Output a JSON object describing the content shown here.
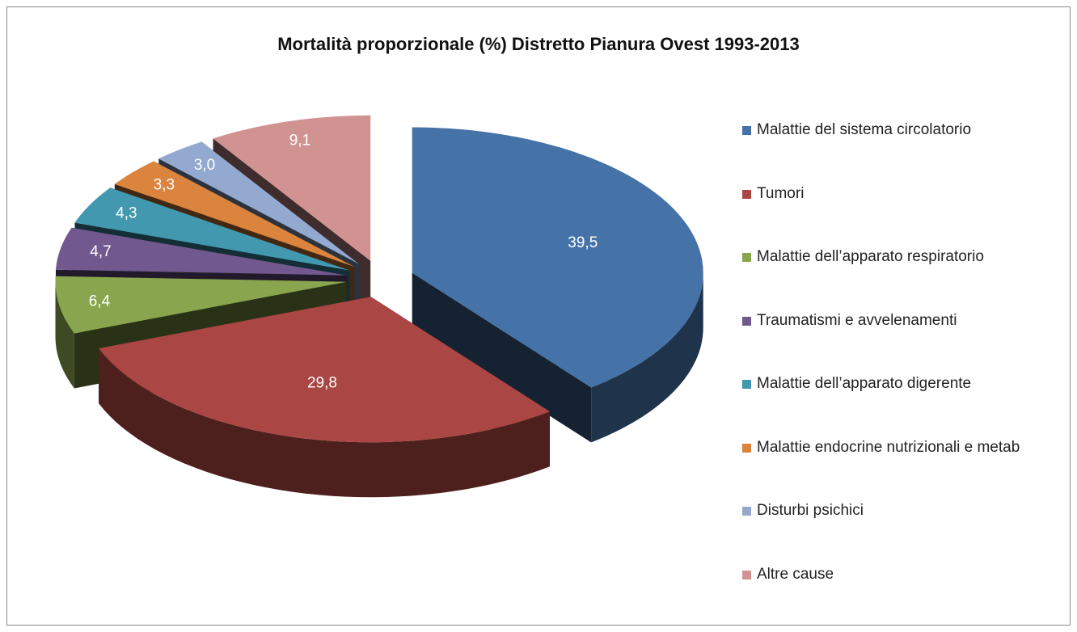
{
  "chart_data": {
    "type": "pie3d",
    "title": "Mortalità proporzionale (%) Distretto Pianura Ovest 1993-2013",
    "categories": [
      "Malattie del sistema circolatorio",
      "Tumori",
      "Malattie dell’apparato respiratorio",
      "Traumatismi e avvelenamenti",
      "Malattie dell’apparato digerente",
      "Malattie endocrine nutrizionali e metab",
      "Disturbi psichici",
      "Altre cause"
    ],
    "values": [
      39.5,
      29.8,
      6.4,
      4.7,
      4.3,
      3.3,
      3.0,
      9.1
    ],
    "value_labels": [
      "39,5",
      "29,8",
      "6,4",
      "4,7",
      "4,3",
      "3,3",
      "3,0",
      "9,1"
    ],
    "colors": [
      "#4572a7",
      "#aa4643",
      "#89a54e",
      "#71588f",
      "#4198af",
      "#db843d",
      "#93a9cf",
      "#d19392"
    ],
    "legend": "right"
  }
}
